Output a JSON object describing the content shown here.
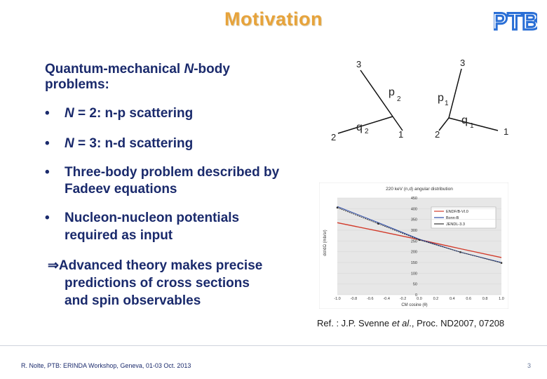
{
  "slide": {
    "title": "Motivation",
    "logo_text": "PTB",
    "intro_line1_prefix": "Quantum-mechanical ",
    "intro_line1_italic": "N",
    "intro_line1_suffix": "-body",
    "intro_line2": "problems:",
    "bullets": [
      {
        "italic": "N",
        "text": " = 2: n-p scattering"
      },
      {
        "italic": "N",
        "text": " = 3: n-d scattering"
      },
      {
        "line1": "Three-body problem described by",
        "line2": "Fadeev equations"
      },
      {
        "line1": "Nucleon-nucleon potentials",
        "line2": "required as input"
      }
    ],
    "conclusion_symbol": "⇒",
    "conclusion_line1": "Advanced theory makes precise",
    "conclusion_line2": "predictions of cross sections",
    "conclusion_line3": "and spin observables",
    "reference_prefix": "Ref. : J.P. Svenne ",
    "reference_italic": "et al",
    "reference_suffix": "., Proc. ND2007, 07208",
    "footer_left": "R. Nolte, PTB: ERINDA Workshop, Geneva, 01-03 Oct. 2013",
    "page_number": "3"
  },
  "diagram": {
    "left": {
      "labels": [
        "3",
        "p",
        "2",
        "q",
        "2",
        "2",
        "1"
      ]
    },
    "right": {
      "labels": [
        "3",
        "p",
        "1",
        "q",
        "1",
        "2",
        "1"
      ]
    }
  },
  "chart_data": {
    "type": "line",
    "title": "220 keV (n,d) angular distribution",
    "xlabel": "CM cosine (θ)",
    "ylabel": "dσ/dΩ (mb/sr)",
    "xlim": [
      -1.0,
      1.0
    ],
    "ylim": [
      0,
      450
    ],
    "x_ticks": [
      "-1.0",
      "-0.8",
      "-0.6",
      "-0.4",
      "-0.2",
      "0.0",
      "0.2",
      "0.4",
      "0.6",
      "0.8",
      "1.0"
    ],
    "y_ticks": [
      "0",
      "50",
      "100",
      "150",
      "200",
      "250",
      "300",
      "350",
      "400",
      "450"
    ],
    "legend_position": "top-right",
    "series": [
      {
        "name": "ENDF/B-VI.0",
        "color": "#d23b2b",
        "x": [
          -1.0,
          -0.5,
          0.0,
          0.5,
          1.0
        ],
        "values": [
          335,
          296,
          256,
          214,
          173
        ]
      },
      {
        "name": "Bonn-B",
        "color": "#2b4ba8",
        "x": [
          -1.0,
          -0.5,
          0.0,
          0.5,
          1.0
        ],
        "values": [
          410,
          335,
          258,
          198,
          150
        ]
      },
      {
        "name": "JENDL-3.3",
        "color": "#333333",
        "x": [
          -1.0,
          -0.5,
          0.0,
          0.5,
          1.0
        ],
        "values": [
          405,
          330,
          255,
          198,
          148
        ]
      }
    ]
  }
}
